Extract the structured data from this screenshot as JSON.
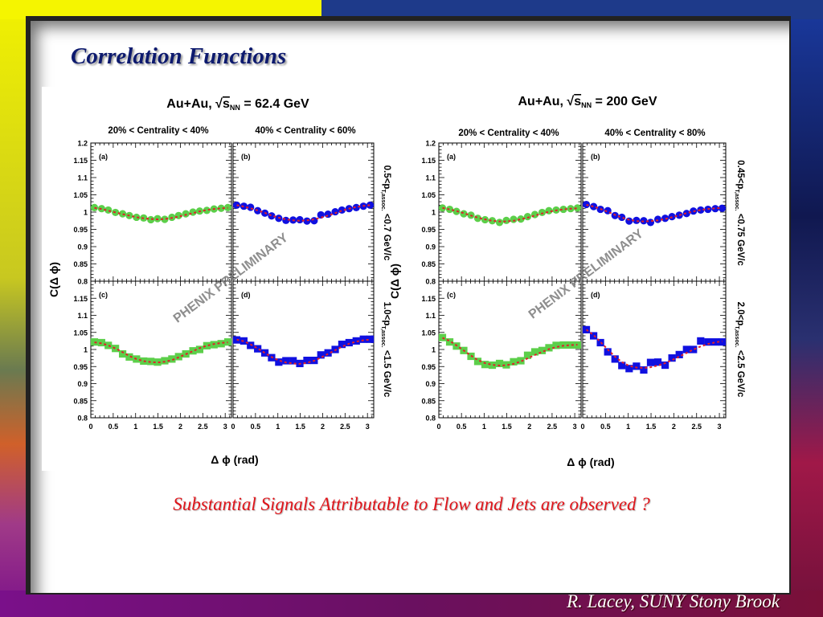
{
  "slide": {
    "title": "Correlation Functions",
    "conclusion": "Substantial Signals Attributable to Flow and Jets are observed ?",
    "footer": "R. Lacey, SUNY  Stony Brook"
  },
  "colors": {
    "title": "#0d1a6e",
    "conclusion": "#e0141a",
    "mid_central_marker": "#5ccf4a",
    "peripheral_marker": "#1010e0",
    "fit_line": "#e0202a",
    "watermark": "#7a7a7a"
  },
  "chart_data": [
    {
      "type": "scatter",
      "title_prefix": "Au+Au,",
      "title_sqrt": "s",
      "title_sub": "NN",
      "title_suffix": "= 62.4 GeV",
      "xlabel": "Δ ϕ (rad)",
      "ylabel": "C(Δ ϕ)",
      "watermark": "PHENIX PRELIMINARY",
      "xlim": [
        0,
        3.14
      ],
      "ylim": [
        0.8,
        1.2
      ],
      "xticks": [
        "0",
        "0.5",
        "1",
        "1.5",
        "2",
        "2.5",
        "3"
      ],
      "yticks_top": [
        "0.8",
        "0.85",
        "0.9",
        "0.95",
        "1",
        "1.05",
        "1.1",
        "1.15",
        "1.2"
      ],
      "yticks_bottom": [
        "0.8",
        "0.85",
        "0.9",
        "0.95",
        "1",
        "1.05",
        "1.1",
        "1.15"
      ],
      "column_headers": [
        "20% < Centrality < 40%",
        "40% < Centrality < 60%"
      ],
      "row_labels": [
        {
          "main": "0.5<p",
          "sub": "T,assoc.",
          "tail": " <0.7 GeV/c"
        },
        {
          "main": "1.0<p",
          "sub": "T,assoc.",
          "tail": " <1.5 GeV/c"
        }
      ],
      "grid": false,
      "panels": [
        {
          "label": "(a)",
          "marker": "circle",
          "color": "#5ccf4a",
          "x": [
            0.08,
            0.24,
            0.39,
            0.55,
            0.71,
            0.86,
            1.02,
            1.18,
            1.34,
            1.49,
            1.65,
            1.81,
            1.96,
            2.12,
            2.28,
            2.43,
            2.59,
            2.75,
            2.91,
            3.06
          ],
          "y": [
            1.013,
            1.01,
            1.006,
            0.999,
            0.995,
            0.99,
            0.985,
            0.983,
            0.978,
            0.981,
            0.979,
            0.985,
            0.99,
            0.995,
            1.0,
            1.003,
            1.005,
            1.009,
            1.011,
            1.013
          ],
          "fit": [
            1.012,
            1.009,
            1.004,
            0.999,
            0.994,
            0.99,
            0.985,
            0.982,
            0.98,
            0.979,
            0.98,
            0.983,
            0.987,
            0.992,
            0.997,
            1.002,
            1.006,
            1.009,
            1.011,
            1.012
          ]
        },
        {
          "label": "(b)",
          "marker": "circle",
          "color": "#1010e0",
          "x": [
            0.08,
            0.24,
            0.39,
            0.55,
            0.71,
            0.86,
            1.02,
            1.18,
            1.34,
            1.49,
            1.65,
            1.81,
            1.96,
            2.12,
            2.28,
            2.43,
            2.59,
            2.75,
            2.91,
            3.06
          ],
          "y": [
            1.02,
            1.017,
            1.014,
            1.004,
            0.997,
            0.989,
            0.982,
            0.976,
            0.977,
            0.978,
            0.974,
            0.975,
            0.992,
            0.994,
            1.001,
            1.006,
            1.01,
            1.013,
            1.017,
            1.02
          ],
          "fit": [
            1.02,
            1.016,
            1.011,
            1.005,
            0.998,
            0.99,
            0.984,
            0.979,
            0.976,
            0.975,
            0.976,
            0.979,
            0.984,
            0.99,
            0.997,
            1.004,
            1.01,
            1.015,
            1.018,
            1.02
          ]
        },
        {
          "label": "(c)",
          "marker": "square",
          "color": "#5ccf4a",
          "x": [
            0.08,
            0.24,
            0.39,
            0.55,
            0.71,
            0.86,
            1.02,
            1.18,
            1.34,
            1.49,
            1.65,
            1.81,
            1.96,
            2.12,
            2.28,
            2.43,
            2.59,
            2.75,
            2.91,
            3.06
          ],
          "y": [
            1.022,
            1.02,
            1.012,
            1.003,
            0.987,
            0.978,
            0.972,
            0.966,
            0.965,
            0.963,
            0.967,
            0.972,
            0.979,
            0.987,
            0.996,
            1.0,
            1.011,
            1.014,
            1.017,
            1.022
          ],
          "fit": [
            1.021,
            1.018,
            1.012,
            1.003,
            0.992,
            0.981,
            0.972,
            0.966,
            0.963,
            0.962,
            0.964,
            0.969,
            0.977,
            0.986,
            0.995,
            1.004,
            1.011,
            1.016,
            1.019,
            1.021
          ]
        },
        {
          "label": "(d)",
          "marker": "square",
          "color": "#1010e0",
          "x": [
            0.08,
            0.24,
            0.39,
            0.55,
            0.71,
            0.86,
            1.02,
            1.18,
            1.34,
            1.49,
            1.65,
            1.81,
            1.96,
            2.12,
            2.28,
            2.43,
            2.59,
            2.75,
            2.91,
            3.06
          ],
          "y": [
            1.028,
            1.025,
            1.012,
            1.002,
            0.99,
            0.976,
            0.963,
            0.967,
            0.967,
            0.959,
            0.968,
            0.968,
            0.984,
            0.99,
            1.0,
            1.015,
            1.02,
            1.025,
            1.03,
            1.03
          ],
          "fit": [
            1.029,
            1.024,
            1.015,
            1.003,
            0.99,
            0.978,
            0.968,
            0.962,
            0.959,
            0.958,
            0.961,
            0.967,
            0.976,
            0.987,
            0.998,
            1.008,
            1.017,
            1.023,
            1.027,
            1.029
          ]
        }
      ]
    },
    {
      "type": "scatter",
      "title_prefix": "Au+Au,",
      "title_sqrt": "s",
      "title_sub": "NN",
      "title_suffix": "= 200 GeV",
      "xlabel": "Δ ϕ (rad)",
      "ylabel": "C(Δ ϕ)",
      "watermark": "PHENIX PRELIMINARY",
      "xlim": [
        0,
        3.14
      ],
      "ylim": [
        0.8,
        1.2
      ],
      "xticks": [
        "0",
        "0.5",
        "1",
        "1.5",
        "2",
        "2.5",
        "3"
      ],
      "yticks_top": [
        "0.8",
        "0.85",
        "0.9",
        "0.95",
        "1",
        "1.05",
        "1.1",
        "1.15",
        "1.2"
      ],
      "yticks_bottom": [
        "0.8",
        "0.85",
        "0.9",
        "0.95",
        "1",
        "1.05",
        "1.1",
        "1.15"
      ],
      "column_headers": [
        "20% < Centrality < 40%",
        "40% < Centrality < 80%"
      ],
      "row_labels": [
        {
          "main": "0.45<p",
          "sub": "T,assoc.",
          "tail": " <0.75 GeV/c"
        },
        {
          "main": "2.0<p",
          "sub": "T,assoc.",
          "tail": " <2.5 GeV/c"
        }
      ],
      "grid": false,
      "panels": [
        {
          "label": "(a)",
          "marker": "circle",
          "color": "#5ccf4a",
          "x": [
            0.08,
            0.24,
            0.39,
            0.55,
            0.71,
            0.86,
            1.02,
            1.18,
            1.34,
            1.49,
            1.65,
            1.81,
            1.96,
            2.12,
            2.28,
            2.43,
            2.59,
            2.75,
            2.91,
            3.06
          ],
          "y": [
            1.012,
            1.008,
            1.002,
            0.995,
            0.991,
            0.982,
            0.978,
            0.975,
            0.97,
            0.976,
            0.979,
            0.98,
            0.987,
            0.993,
            0.999,
            1.004,
            1.006,
            1.008,
            1.01,
            1.012
          ],
          "fit": [
            1.012,
            1.008,
            1.003,
            0.997,
            0.99,
            0.984,
            0.979,
            0.975,
            0.973,
            0.973,
            0.975,
            0.979,
            0.984,
            0.99,
            0.996,
            1.001,
            1.005,
            1.008,
            1.01,
            1.011
          ]
        },
        {
          "label": "(b)",
          "marker": "circle",
          "color": "#1010e0",
          "x": [
            0.08,
            0.24,
            0.39,
            0.55,
            0.71,
            0.86,
            1.02,
            1.18,
            1.34,
            1.49,
            1.65,
            1.81,
            1.96,
            2.12,
            2.28,
            2.43,
            2.59,
            2.75,
            2.91,
            3.06
          ],
          "y": [
            1.022,
            1.016,
            1.008,
            1.004,
            0.99,
            0.985,
            0.974,
            0.976,
            0.975,
            0.97,
            0.979,
            0.982,
            0.987,
            0.991,
            0.996,
            1.003,
            1.006,
            1.008,
            1.01,
            1.011
          ],
          "fit": [
            1.021,
            1.016,
            1.009,
            1.001,
            0.992,
            0.984,
            0.978,
            0.974,
            0.973,
            0.974,
            0.976,
            0.98,
            0.985,
            0.991,
            0.997,
            1.002,
            1.006,
            1.009,
            1.011,
            1.012
          ]
        },
        {
          "label": "(c)",
          "marker": "square",
          "color": "#5ccf4a",
          "x": [
            0.08,
            0.24,
            0.39,
            0.55,
            0.71,
            0.86,
            1.02,
            1.18,
            1.34,
            1.49,
            1.65,
            1.81,
            1.96,
            2.12,
            2.28,
            2.43,
            2.59,
            2.75,
            2.91,
            3.06
          ],
          "y": [
            1.035,
            1.022,
            1.01,
            0.997,
            0.98,
            0.965,
            0.956,
            0.954,
            0.959,
            0.955,
            0.964,
            0.967,
            0.983,
            0.993,
            0.997,
            1.005,
            1.012,
            1.013,
            1.013,
            1.013
          ],
          "fit": [
            1.034,
            1.025,
            1.012,
            0.997,
            0.982,
            0.969,
            0.96,
            0.955,
            0.953,
            0.954,
            0.958,
            0.965,
            0.974,
            0.984,
            0.993,
            1.001,
            1.007,
            1.011,
            1.013,
            1.014
          ]
        },
        {
          "label": "(d)",
          "marker": "square",
          "color": "#1010e0",
          "x": [
            0.08,
            0.24,
            0.39,
            0.55,
            0.71,
            0.86,
            1.02,
            1.18,
            1.34,
            1.49,
            1.65,
            1.81,
            1.96,
            2.12,
            2.28,
            2.43,
            2.59,
            2.75,
            2.91,
            3.06
          ],
          "y": [
            1.058,
            1.04,
            1.02,
            0.993,
            0.972,
            0.953,
            0.944,
            0.951,
            0.94,
            0.962,
            0.963,
            0.954,
            0.975,
            0.985,
            1.0,
            1.0,
            1.025,
            1.022,
            1.022,
            1.022
          ],
          "fit": [
            1.058,
            1.042,
            1.022,
            1.0,
            0.979,
            0.963,
            0.952,
            0.947,
            0.946,
            0.948,
            0.953,
            0.96,
            0.969,
            0.979,
            0.99,
            1.0,
            1.009,
            1.016,
            1.021,
            1.024
          ]
        }
      ]
    }
  ]
}
